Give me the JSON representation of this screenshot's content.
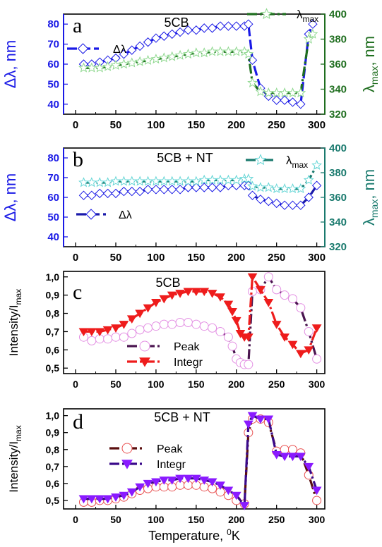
{
  "colors": {
    "blue": "#1a1ae6",
    "green": "#1f6e1f",
    "green_marker": "#8fd88f",
    "teal": "#1a7a6e",
    "cyan_marker": "#66d6d6",
    "purple_line": "#4a154f",
    "pink_marker": "#e38fe3",
    "red": "#ee1c1c",
    "dark_red_line": "#5a0f0f",
    "red_marker": "#e85050",
    "violet": "#8a1aff"
  },
  "chart_data": [
    {
      "type": "line",
      "panel_letter": "a",
      "title": "5CB",
      "xlim": [
        -15,
        310
      ],
      "xticks": [
        "0",
        "50",
        "100",
        "150",
        "200",
        "250",
        "300"
      ],
      "ylabel_left": "Δλ, nm",
      "ylim_left": [
        35,
        85
      ],
      "yticks_left": [
        "40",
        "50",
        "60",
        "70",
        "80"
      ],
      "ylabel_right": "λmax, nm",
      "ylim_right": [
        320,
        400
      ],
      "yticks_right": [
        "320",
        "340",
        "360",
        "380",
        "400"
      ],
      "series": [
        {
          "name": "Δλ",
          "axis": "left",
          "marker": "diamond",
          "x": [
            10,
            20,
            30,
            40,
            50,
            60,
            70,
            80,
            90,
            100,
            110,
            120,
            130,
            140,
            150,
            160,
            170,
            180,
            190,
            200,
            210,
            215,
            220,
            230,
            240,
            250,
            260,
            270,
            280,
            290,
            295
          ],
          "y": [
            60,
            60,
            61,
            62,
            63,
            65,
            67,
            69,
            71,
            73,
            74,
            75,
            76,
            77,
            77,
            78,
            78,
            79,
            79,
            79,
            79,
            80,
            62,
            48,
            44,
            42,
            42,
            41,
            40,
            75,
            80
          ]
        },
        {
          "name": "λmax",
          "axis": "right",
          "marker": "star",
          "x": [
            10,
            20,
            30,
            40,
            50,
            60,
            70,
            80,
            90,
            100,
            110,
            120,
            130,
            140,
            150,
            160,
            170,
            180,
            190,
            200,
            210,
            215,
            220,
            230,
            240,
            250,
            260,
            270,
            280,
            290,
            295
          ],
          "y": [
            357,
            357,
            357,
            358,
            359,
            360,
            361,
            362,
            363,
            364,
            365,
            366,
            367,
            368,
            369,
            369,
            370,
            370,
            370,
            370,
            370,
            368,
            345,
            338,
            337,
            337,
            337,
            337,
            337,
            380,
            384
          ]
        }
      ]
    },
    {
      "type": "line",
      "panel_letter": "b",
      "title": "5CB + NT",
      "xlim": [
        -15,
        310
      ],
      "xticks": [
        "0",
        "50",
        "100",
        "150",
        "200",
        "250",
        "300"
      ],
      "ylabel_left": "Δλ, nm",
      "ylim_left": [
        35,
        85
      ],
      "yticks_left": [
        "40",
        "50",
        "60",
        "70",
        "80"
      ],
      "ylabel_right": "λmax, nm",
      "ylim_right": [
        320,
        400
      ],
      "yticks_right": [
        "320",
        "340",
        "360",
        "380",
        "400"
      ],
      "series": [
        {
          "name": "Δλ",
          "axis": "left",
          "marker": "diamond",
          "x": [
            10,
            20,
            30,
            40,
            50,
            60,
            70,
            80,
            90,
            100,
            110,
            120,
            130,
            140,
            150,
            160,
            170,
            180,
            190,
            200,
            210,
            215,
            220,
            230,
            240,
            250,
            260,
            270,
            280,
            290,
            300
          ],
          "y": [
            61,
            61,
            62,
            62,
            62,
            63,
            63,
            63,
            64,
            64,
            64,
            64,
            64,
            65,
            65,
            65,
            65,
            65,
            66,
            66,
            66,
            66,
            61,
            59,
            58,
            57,
            56,
            56,
            56,
            60,
            66
          ]
        },
        {
          "name": "λmax",
          "axis": "right",
          "marker": "star",
          "x": [
            10,
            20,
            30,
            40,
            50,
            60,
            70,
            80,
            90,
            100,
            110,
            120,
            130,
            140,
            150,
            160,
            170,
            180,
            190,
            200,
            210,
            215,
            220,
            230,
            240,
            250,
            260,
            270,
            280,
            290,
            300
          ],
          "y": [
            372,
            372,
            372,
            372,
            373,
            373,
            373,
            373,
            373,
            373,
            373,
            373,
            373,
            373,
            373,
            374,
            374,
            374,
            374,
            374,
            375,
            375,
            369,
            368,
            368,
            367,
            367,
            367,
            367,
            374,
            386
          ]
        }
      ]
    },
    {
      "type": "line",
      "panel_letter": "c",
      "title": "5CB",
      "xlim": [
        -15,
        310
      ],
      "xticks": [
        "0",
        "50",
        "100",
        "150",
        "200",
        "250",
        "300"
      ],
      "ylabel_left": "Intensity/Imax",
      "ylim_left": [
        0.47,
        1.03
      ],
      "yticks_left": [
        "0,5",
        "0,6",
        "0,7",
        "0,8",
        "0,9",
        "1,0"
      ],
      "series": [
        {
          "name": "Peak",
          "marker": "circle",
          "x": [
            10,
            20,
            30,
            40,
            50,
            60,
            70,
            80,
            90,
            100,
            110,
            120,
            130,
            140,
            150,
            160,
            170,
            180,
            190,
            195,
            200,
            205,
            210,
            215,
            220,
            230,
            240,
            250,
            260,
            270,
            280,
            290,
            300
          ],
          "y": [
            0.67,
            0.65,
            0.66,
            0.66,
            0.67,
            0.67,
            0.69,
            0.71,
            0.72,
            0.73,
            0.74,
            0.74,
            0.75,
            0.75,
            0.74,
            0.73,
            0.72,
            0.7,
            0.67,
            0.62,
            0.55,
            0.53,
            0.52,
            0.52,
            0.92,
            0.93,
            1.0,
            0.93,
            0.9,
            0.88,
            0.83,
            0.7,
            0.55
          ]
        },
        {
          "name": "Integr",
          "marker": "triangle",
          "x": [
            10,
            20,
            30,
            40,
            50,
            60,
            70,
            80,
            90,
            100,
            110,
            120,
            130,
            140,
            150,
            160,
            170,
            180,
            190,
            195,
            200,
            205,
            210,
            215,
            220,
            230,
            240,
            250,
            260,
            270,
            280,
            290,
            300
          ],
          "y": [
            0.7,
            0.7,
            0.7,
            0.71,
            0.72,
            0.74,
            0.77,
            0.8,
            0.83,
            0.86,
            0.88,
            0.9,
            0.91,
            0.92,
            0.92,
            0.92,
            0.91,
            0.89,
            0.85,
            0.81,
            0.76,
            0.69,
            0.67,
            0.67,
            1.0,
            0.93,
            0.86,
            0.74,
            0.67,
            0.63,
            0.58,
            0.6,
            0.72
          ]
        }
      ]
    },
    {
      "type": "line",
      "panel_letter": "d",
      "title": "5CB + NT",
      "xlabel": "Temperature, °K",
      "xlim": [
        -15,
        310
      ],
      "xticks": [
        "0",
        "50",
        "100",
        "150",
        "200",
        "250",
        "300"
      ],
      "ylabel_left": "Intensity/Imax",
      "ylim_left": [
        0.45,
        1.04
      ],
      "yticks_left": [
        "0,5",
        "0,6",
        "0,7",
        "0,8",
        "0,9",
        "1,0"
      ],
      "series": [
        {
          "name": "Peak",
          "marker": "circle",
          "x": [
            10,
            20,
            30,
            40,
            50,
            60,
            70,
            80,
            90,
            100,
            110,
            120,
            130,
            140,
            150,
            160,
            170,
            180,
            190,
            200,
            210,
            215,
            220,
            230,
            240,
            250,
            260,
            270,
            280,
            290,
            300
          ],
          "y": [
            0.49,
            0.49,
            0.5,
            0.5,
            0.51,
            0.52,
            0.54,
            0.56,
            0.57,
            0.58,
            0.58,
            0.58,
            0.59,
            0.59,
            0.59,
            0.58,
            0.57,
            0.55,
            0.53,
            0.5,
            0.48,
            0.9,
            0.98,
            0.98,
            0.96,
            0.79,
            0.8,
            0.8,
            0.78,
            0.65,
            0.5
          ]
        },
        {
          "name": "Integr",
          "marker": "triangle",
          "x": [
            10,
            20,
            30,
            40,
            50,
            60,
            70,
            80,
            90,
            100,
            110,
            120,
            130,
            140,
            150,
            160,
            170,
            180,
            190,
            200,
            210,
            215,
            220,
            230,
            240,
            250,
            260,
            270,
            280,
            290,
            300
          ],
          "y": [
            0.51,
            0.51,
            0.51,
            0.51,
            0.52,
            0.53,
            0.55,
            0.58,
            0.6,
            0.61,
            0.62,
            0.62,
            0.63,
            0.63,
            0.63,
            0.62,
            0.61,
            0.59,
            0.56,
            0.53,
            0.47,
            0.95,
            1.0,
            0.98,
            0.98,
            0.77,
            0.76,
            0.76,
            0.76,
            0.7,
            0.56
          ]
        }
      ]
    }
  ]
}
